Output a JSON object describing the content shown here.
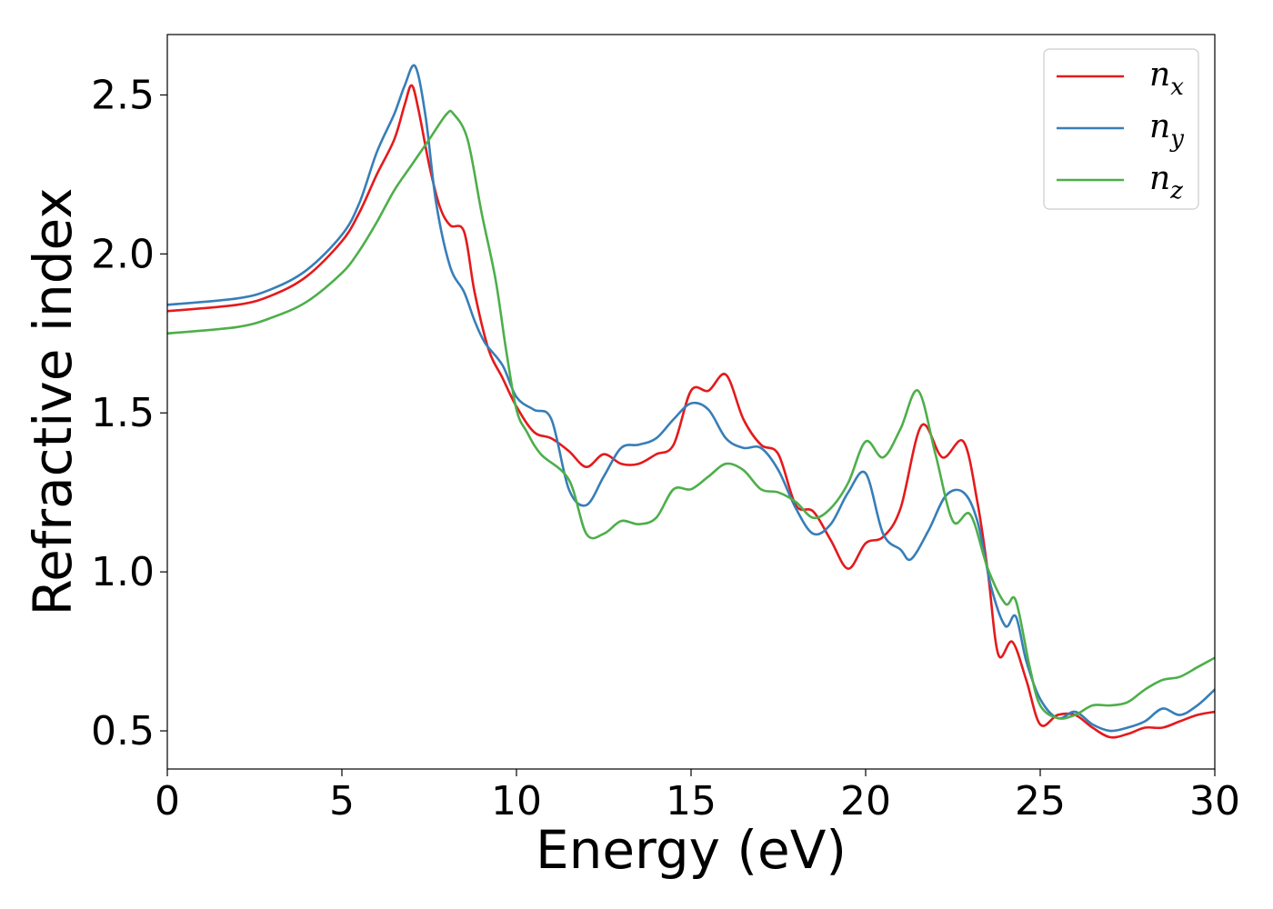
{
  "chart_data": {
    "type": "line",
    "xlabel": "Energy (eV)",
    "ylabel": "Refractive index",
    "xlim": [
      0,
      30
    ],
    "ylim": [
      0.38,
      2.69
    ],
    "xticks": [
      0,
      5,
      10,
      15,
      20,
      25,
      30
    ],
    "yticks": [
      0.5,
      1.0,
      1.5,
      2.0,
      2.5
    ],
    "xtick_labels": [
      "0",
      "5",
      "10",
      "15",
      "20",
      "25",
      "30"
    ],
    "ytick_labels": [
      "0.5",
      "1.0",
      "1.5",
      "2.0",
      "2.5"
    ],
    "grid": false,
    "legend_position": "top-right",
    "series": [
      {
        "name": "n",
        "subscript": "x",
        "color": "#e41a1c",
        "points": [
          [
            0,
            1.82
          ],
          [
            2,
            1.84
          ],
          [
            3,
            1.87
          ],
          [
            4,
            1.93
          ],
          [
            5,
            2.04
          ],
          [
            5.5,
            2.13
          ],
          [
            6,
            2.25
          ],
          [
            6.5,
            2.36
          ],
          [
            6.8,
            2.47
          ],
          [
            7.0,
            2.53
          ],
          [
            7.2,
            2.45
          ],
          [
            7.5,
            2.28
          ],
          [
            7.8,
            2.15
          ],
          [
            8.1,
            2.09
          ],
          [
            8.5,
            2.07
          ],
          [
            8.8,
            1.88
          ],
          [
            9.2,
            1.7
          ],
          [
            9.6,
            1.61
          ],
          [
            10,
            1.52
          ],
          [
            10.5,
            1.44
          ],
          [
            11,
            1.42
          ],
          [
            11.5,
            1.38
          ],
          [
            12,
            1.33
          ],
          [
            12.5,
            1.37
          ],
          [
            13,
            1.34
          ],
          [
            13.5,
            1.34
          ],
          [
            14,
            1.37
          ],
          [
            14.5,
            1.4
          ],
          [
            15,
            1.57
          ],
          [
            15.5,
            1.57
          ],
          [
            16,
            1.62
          ],
          [
            16.5,
            1.48
          ],
          [
            17,
            1.4
          ],
          [
            17.5,
            1.37
          ],
          [
            18,
            1.21
          ],
          [
            18.5,
            1.19
          ],
          [
            19,
            1.1
          ],
          [
            19.5,
            1.01
          ],
          [
            20,
            1.09
          ],
          [
            20.5,
            1.11
          ],
          [
            21,
            1.2
          ],
          [
            21.6,
            1.46
          ],
          [
            22.2,
            1.36
          ],
          [
            22.8,
            1.41
          ],
          [
            23.2,
            1.22
          ],
          [
            23.5,
            1.0
          ],
          [
            23.8,
            0.74
          ],
          [
            24.2,
            0.78
          ],
          [
            24.6,
            0.66
          ],
          [
            25,
            0.52
          ],
          [
            25.5,
            0.55
          ],
          [
            26,
            0.55
          ],
          [
            26.5,
            0.51
          ],
          [
            27,
            0.48
          ],
          [
            27.5,
            0.49
          ],
          [
            28,
            0.51
          ],
          [
            28.5,
            0.51
          ],
          [
            29,
            0.53
          ],
          [
            29.5,
            0.55
          ],
          [
            30,
            0.56
          ]
        ]
      },
      {
        "name": "n",
        "subscript": "y",
        "color": "#377eb8",
        "points": [
          [
            0,
            1.84
          ],
          [
            2,
            1.86
          ],
          [
            3,
            1.89
          ],
          [
            4,
            1.95
          ],
          [
            5,
            2.06
          ],
          [
            5.5,
            2.16
          ],
          [
            6,
            2.32
          ],
          [
            6.5,
            2.44
          ],
          [
            6.8,
            2.53
          ],
          [
            7.1,
            2.59
          ],
          [
            7.4,
            2.43
          ],
          [
            7.7,
            2.16
          ],
          [
            8.1,
            1.96
          ],
          [
            8.5,
            1.88
          ],
          [
            8.8,
            1.79
          ],
          [
            9.1,
            1.72
          ],
          [
            9.6,
            1.65
          ],
          [
            10,
            1.55
          ],
          [
            10.5,
            1.51
          ],
          [
            11,
            1.48
          ],
          [
            11.5,
            1.26
          ],
          [
            12,
            1.21
          ],
          [
            12.5,
            1.3
          ],
          [
            13,
            1.39
          ],
          [
            13.5,
            1.4
          ],
          [
            14,
            1.42
          ],
          [
            14.5,
            1.48
          ],
          [
            15,
            1.53
          ],
          [
            15.5,
            1.51
          ],
          [
            16,
            1.42
          ],
          [
            16.5,
            1.39
          ],
          [
            17,
            1.39
          ],
          [
            17.5,
            1.32
          ],
          [
            18,
            1.2
          ],
          [
            18.5,
            1.12
          ],
          [
            19,
            1.15
          ],
          [
            19.5,
            1.25
          ],
          [
            20,
            1.31
          ],
          [
            20.5,
            1.12
          ],
          [
            21,
            1.07
          ],
          [
            21.3,
            1.04
          ],
          [
            21.8,
            1.13
          ],
          [
            22.3,
            1.24
          ],
          [
            22.8,
            1.25
          ],
          [
            23.2,
            1.16
          ],
          [
            23.6,
            0.95
          ],
          [
            24,
            0.83
          ],
          [
            24.3,
            0.86
          ],
          [
            24.6,
            0.72
          ],
          [
            25,
            0.6
          ],
          [
            25.5,
            0.54
          ],
          [
            26,
            0.56
          ],
          [
            26.5,
            0.52
          ],
          [
            27,
            0.5
          ],
          [
            27.5,
            0.51
          ],
          [
            28,
            0.53
          ],
          [
            28.5,
            0.57
          ],
          [
            29,
            0.55
          ],
          [
            29.5,
            0.58
          ],
          [
            30,
            0.63
          ]
        ]
      },
      {
        "name": "n",
        "subscript": "z",
        "color": "#4daf4a",
        "points": [
          [
            0,
            1.75
          ],
          [
            2,
            1.77
          ],
          [
            3,
            1.8
          ],
          [
            4,
            1.85
          ],
          [
            5,
            1.94
          ],
          [
            5.5,
            2.01
          ],
          [
            6,
            2.1
          ],
          [
            6.5,
            2.2
          ],
          [
            7,
            2.28
          ],
          [
            7.5,
            2.36
          ],
          [
            8,
            2.44
          ],
          [
            8.2,
            2.44
          ],
          [
            8.6,
            2.36
          ],
          [
            9.0,
            2.13
          ],
          [
            9.4,
            1.92
          ],
          [
            9.7,
            1.7
          ],
          [
            10,
            1.51
          ],
          [
            10.3,
            1.44
          ],
          [
            10.7,
            1.37
          ],
          [
            11.5,
            1.29
          ],
          [
            12,
            1.12
          ],
          [
            12.5,
            1.12
          ],
          [
            13,
            1.16
          ],
          [
            13.5,
            1.15
          ],
          [
            14,
            1.17
          ],
          [
            14.5,
            1.26
          ],
          [
            15,
            1.26
          ],
          [
            15.5,
            1.3
          ],
          [
            16,
            1.34
          ],
          [
            16.5,
            1.32
          ],
          [
            17,
            1.26
          ],
          [
            17.5,
            1.25
          ],
          [
            18,
            1.22
          ],
          [
            18.5,
            1.17
          ],
          [
            19,
            1.2
          ],
          [
            19.5,
            1.28
          ],
          [
            20,
            1.41
          ],
          [
            20.5,
            1.36
          ],
          [
            21,
            1.45
          ],
          [
            21.5,
            1.57
          ],
          [
            22,
            1.37
          ],
          [
            22.5,
            1.16
          ],
          [
            23,
            1.18
          ],
          [
            23.5,
            1.01
          ],
          [
            24,
            0.9
          ],
          [
            24.3,
            0.91
          ],
          [
            24.7,
            0.7
          ],
          [
            25,
            0.58
          ],
          [
            25.5,
            0.54
          ],
          [
            26,
            0.55
          ],
          [
            26.5,
            0.58
          ],
          [
            27,
            0.58
          ],
          [
            27.5,
            0.59
          ],
          [
            28,
            0.63
          ],
          [
            28.5,
            0.66
          ],
          [
            29,
            0.67
          ],
          [
            29.5,
            0.7
          ],
          [
            30,
            0.73
          ]
        ]
      }
    ]
  }
}
